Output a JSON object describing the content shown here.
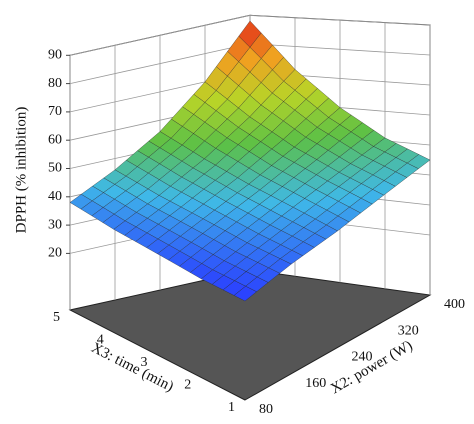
{
  "chart_data": {
    "type": "surface",
    "xlabel": "X2: power (W)",
    "ylabel": "X3: time (min)",
    "zlabel": "DPPH (% inhibition)",
    "x": [
      80,
      160,
      240,
      320,
      400
    ],
    "y": [
      1,
      2,
      3,
      4,
      5
    ],
    "z": [
      [
        30,
        31,
        33,
        35,
        38
      ],
      [
        34,
        36,
        39,
        42,
        46
      ],
      [
        37,
        41,
        45,
        50,
        56
      ],
      [
        41,
        46,
        52,
        60,
        70
      ],
      [
        45,
        51,
        60,
        72,
        88
      ]
    ],
    "xlim": [
      80,
      400
    ],
    "ylim": [
      1,
      5
    ],
    "zlim": [
      0,
      90
    ],
    "xticks": [
      80,
      160,
      240,
      320,
      400
    ],
    "yticks": [
      1,
      2,
      3,
      4,
      5
    ],
    "zticks": [
      20,
      30,
      40,
      50,
      60,
      70,
      80,
      90
    ],
    "grid": true,
    "floor_color": "#555555",
    "colormap": [
      "#2a3cff",
      "#3fb8e8",
      "#5cc046",
      "#b8d428",
      "#f0a020",
      "#e02018"
    ]
  }
}
